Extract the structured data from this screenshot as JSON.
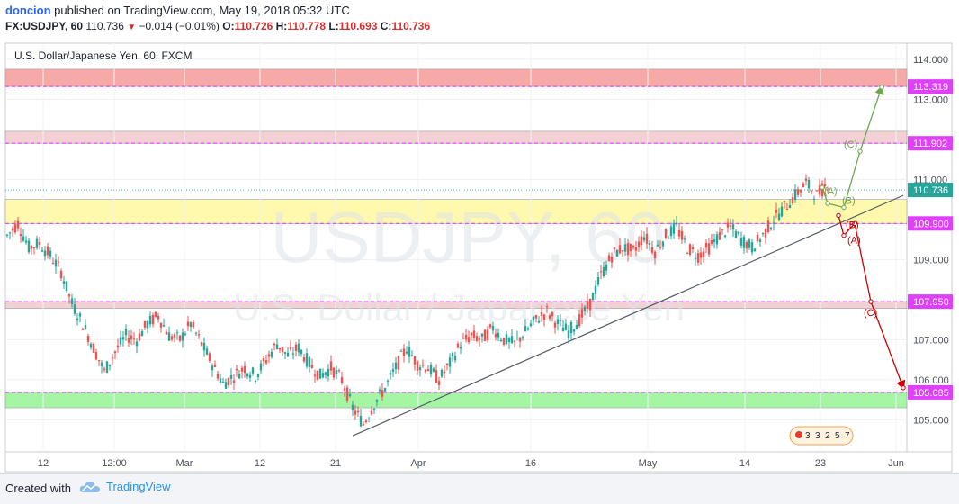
{
  "header": {
    "author": "doncion",
    "published_text": "published on TradingView.com, May 19, 2018 05:32 UTC",
    "symbol": "FX:USDJPY, 60",
    "last": "110.736",
    "change": "−0.014 (−0.01%)",
    "o_label": "O:",
    "o": "110.726",
    "h_label": "H:",
    "h": "110.778",
    "l_label": "L:",
    "l": "110.693",
    "c_label": "C:",
    "c": "110.736"
  },
  "footer": {
    "created_with": "Created with",
    "brand": "TradingView"
  },
  "colors": {
    "up": "#26a69a",
    "down": "#ef5350",
    "level_line": "#e040fb",
    "zone_red": "#f7a9a8",
    "zone_pink": "#f3d0d3",
    "zone_yellow": "#fff9ae",
    "zone_green": "#a5f5a5",
    "green_path": "#6aa84f",
    "red_path": "#cc0000",
    "current_price": "#26a69a"
  },
  "chart_data": {
    "type": "candlestick",
    "title": "U.S. Dollar/Japanese Yen, 60, FXCM",
    "watermark_symbol": "USDJPY, 60",
    "watermark_name": "U.S. Dollar / Japanese Yen",
    "ylim": [
      104.2,
      114.4
    ],
    "y_ticks": [
      "114.000",
      "113.000",
      "111.000",
      "109.000",
      "107.000",
      "106.000",
      "105.000"
    ],
    "x_ticks": [
      "12",
      "12:00",
      "Mar",
      "12",
      "21",
      "Apr",
      "16",
      "May",
      "14",
      "23",
      "Jun"
    ],
    "levels": [
      {
        "label": "113.319",
        "value": 113.319
      },
      {
        "label": "111.902",
        "value": 111.902
      },
      {
        "label": "109.900",
        "value": 109.9
      },
      {
        "label": "107.950",
        "value": 107.95
      },
      {
        "label": "105.685",
        "value": 105.685
      }
    ],
    "current_price": {
      "label": "110.736",
      "value": 110.736
    },
    "zones": [
      {
        "from": 113.319,
        "to": 113.75,
        "color": "zone_red"
      },
      {
        "from": 111.902,
        "to": 112.2,
        "color": "zone_pink"
      },
      {
        "from": 109.9,
        "to": 110.5,
        "color": "zone_yellow"
      },
      {
        "from": 107.78,
        "to": 107.95,
        "color": "zone_pink"
      },
      {
        "from": 105.3,
        "to": 105.685,
        "color": "zone_green"
      }
    ],
    "price_path": [
      [
        0,
        109.6
      ],
      [
        2,
        109.9
      ],
      [
        4,
        109.3
      ],
      [
        6,
        109.4
      ],
      [
        8,
        109.1
      ],
      [
        10,
        108.7
      ],
      [
        12,
        107.9
      ],
      [
        14,
        107.4
      ],
      [
        16,
        106.8
      ],
      [
        18,
        106.2
      ],
      [
        20,
        106.7
      ],
      [
        22,
        107.1
      ],
      [
        24,
        107.0
      ],
      [
        26,
        107.4
      ],
      [
        28,
        107.6
      ],
      [
        30,
        107.1
      ],
      [
        32,
        107.0
      ],
      [
        34,
        107.4
      ],
      [
        36,
        106.9
      ],
      [
        38,
        106.4
      ],
      [
        40,
        105.9
      ],
      [
        42,
        106.1
      ],
      [
        44,
        106.3
      ],
      [
        46,
        106.1
      ],
      [
        48,
        106.5
      ],
      [
        50,
        106.9
      ],
      [
        52,
        106.6
      ],
      [
        54,
        106.8
      ],
      [
        56,
        106.4
      ],
      [
        58,
        106.1
      ],
      [
        60,
        106.3
      ],
      [
        62,
        106.0
      ],
      [
        64,
        105.3
      ],
      [
        66,
        104.9
      ],
      [
        68,
        105.4
      ],
      [
        70,
        105.8
      ],
      [
        72,
        106.3
      ],
      [
        74,
        106.8
      ],
      [
        76,
        106.4
      ],
      [
        78,
        106.3
      ],
      [
        80,
        106.0
      ],
      [
        82,
        106.4
      ],
      [
        84,
        106.9
      ],
      [
        86,
        107.1
      ],
      [
        88,
        107.0
      ],
      [
        90,
        107.3
      ],
      [
        92,
        107.0
      ],
      [
        94,
        106.9
      ],
      [
        96,
        107.2
      ],
      [
        98,
        107.5
      ],
      [
        100,
        107.7
      ],
      [
        102,
        107.4
      ],
      [
        104,
        107.2
      ],
      [
        106,
        107.5
      ],
      [
        108,
        107.9
      ],
      [
        110,
        108.6
      ],
      [
        112,
        109.1
      ],
      [
        114,
        109.3
      ],
      [
        116,
        109.2
      ],
      [
        118,
        109.6
      ],
      [
        120,
        109.2
      ],
      [
        122,
        109.6
      ],
      [
        124,
        109.8
      ],
      [
        126,
        109.3
      ],
      [
        128,
        109.1
      ],
      [
        130,
        109.3
      ],
      [
        132,
        109.6
      ],
      [
        134,
        109.8
      ],
      [
        136,
        109.5
      ],
      [
        138,
        109.3
      ],
      [
        140,
        109.6
      ],
      [
        142,
        110.0
      ],
      [
        144,
        110.3
      ],
      [
        146,
        110.6
      ],
      [
        148,
        110.9
      ],
      [
        150,
        110.6
      ],
      [
        152,
        110.9
      ]
    ],
    "trendline": {
      "from": [
        64,
        104.6
      ],
      "to": [
        166,
        110.6
      ]
    },
    "green_wave": {
      "points": [
        [
          151,
          110.8
        ],
        [
          152,
          110.4
        ],
        [
          155,
          110.3
        ],
        [
          158,
          111.7
        ],
        [
          162,
          113.3
        ]
      ],
      "labels": [
        "(A)",
        "(B)",
        "(C)"
      ]
    },
    "red_wave": {
      "points": [
        [
          154,
          110.1
        ],
        [
          155,
          109.6
        ],
        [
          157,
          109.9
        ],
        [
          160,
          107.95
        ],
        [
          166,
          105.8
        ]
      ],
      "labels": [
        "(B)",
        "(A)",
        "(C)"
      ]
    },
    "bottom_badges": [
      "3",
      "3",
      "2",
      "5",
      "7"
    ]
  }
}
